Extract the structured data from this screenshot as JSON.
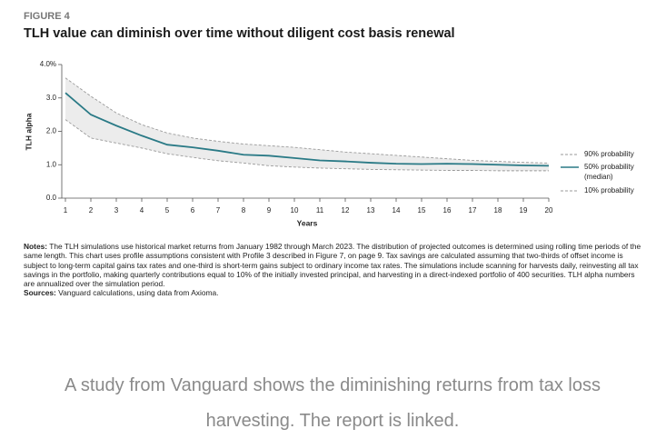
{
  "chart_data": {
    "type": "line",
    "figure_label": "FIGURE 4",
    "title": "TLH value can diminish over time without diligent cost basis renewal",
    "y_label": "TLH alpha",
    "x_label": "Years",
    "x": [
      1,
      2,
      3,
      4,
      5,
      6,
      7,
      8,
      9,
      10,
      11,
      12,
      13,
      14,
      15,
      16,
      17,
      18,
      19,
      20
    ],
    "xlim": [
      1,
      20
    ],
    "xticks": [
      1,
      2,
      3,
      4,
      5,
      6,
      7,
      8,
      9,
      10,
      11,
      12,
      13,
      14,
      15,
      16,
      17,
      18,
      19,
      20
    ],
    "ylim": [
      0,
      4
    ],
    "yticks": [
      {
        "value": 0,
        "label": "0.0"
      },
      {
        "value": 1,
        "label": "1.0"
      },
      {
        "value": 2,
        "label": "2.0"
      },
      {
        "value": 3,
        "label": "3.0"
      },
      {
        "value": 4,
        "label": "4.0%"
      }
    ],
    "band_color": "#ececec",
    "series": [
      {
        "name": "90% probability",
        "color": "#999999",
        "dash": true,
        "values": [
          3.6,
          3.05,
          2.55,
          2.2,
          1.95,
          1.8,
          1.7,
          1.62,
          1.57,
          1.52,
          1.45,
          1.38,
          1.33,
          1.28,
          1.23,
          1.18,
          1.13,
          1.1,
          1.07,
          1.05
        ]
      },
      {
        "name": "50% probability",
        "note": "(median)",
        "color": "#2a7a86",
        "dash": false,
        "values": [
          3.15,
          2.5,
          2.17,
          1.87,
          1.6,
          1.52,
          1.42,
          1.3,
          1.27,
          1.2,
          1.13,
          1.1,
          1.06,
          1.03,
          1.02,
          1.03,
          1.02,
          1.0,
          0.98,
          0.97
        ]
      },
      {
        "name": "10% probability",
        "color": "#999999",
        "dash": true,
        "values": [
          2.35,
          1.8,
          1.65,
          1.5,
          1.33,
          1.22,
          1.12,
          1.05,
          0.97,
          0.93,
          0.9,
          0.88,
          0.86,
          0.85,
          0.84,
          0.83,
          0.83,
          0.82,
          0.82,
          0.82
        ]
      }
    ]
  },
  "notes_label": "Notes:",
  "notes": "The TLH simulations use historical market returns from January 1982 through March 2023. The distribution of projected outcomes is determined using rolling time periods of the same length. This chart uses profile assumptions consistent with Profile 3 described in Figure 7, on page 9. Tax savings are calculated assuming that two-thirds of offset income is subject to long-term capital gains tax rates and one-third is short-term gains subject to ordinary income tax rates. The simulations include scanning for harvests daily, reinvesting all tax savings in the portfolio, making quarterly contributions equal to 10% of the initially invested principal, and harvesting in a direct-indexed portfolio of 400 securities. TLH alpha numbers are annualized over the simulation period.",
  "sources_label": "Sources:",
  "sources": "Vanguard calculations, using data from Axioma.",
  "caption": "A study from Vanguard shows the diminishing returns from tax loss harvesting. The report is linked."
}
